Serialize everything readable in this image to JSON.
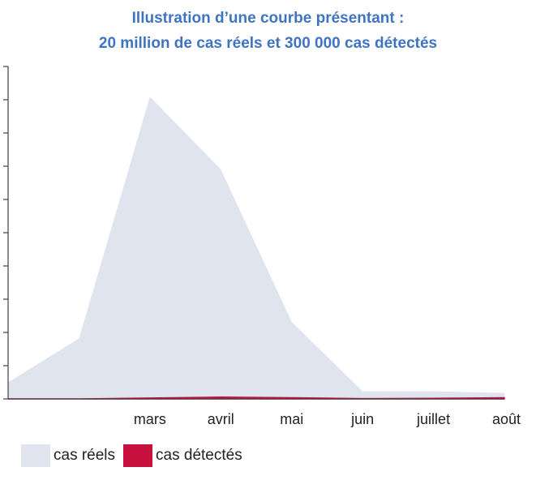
{
  "title_line1": "Illustration d’une courbe présentant :",
  "title_line2": "20 million de cas réels et 300 000 cas détectés",
  "chart_data": {
    "type": "area",
    "x": [
      "",
      "",
      "mars",
      "avril",
      "mai",
      "juin",
      "juillet",
      "août"
    ],
    "tick_labels": [
      "mars",
      "avril",
      "mai",
      "juin",
      "juillet",
      "août"
    ],
    "series": [
      {
        "name": "cas réels",
        "color": "#dfe4ee",
        "values": [
          0.55,
          2.0,
          10.0,
          7.6,
          2.55,
          0.25,
          0.25,
          0.2
        ]
      },
      {
        "name": "cas détectés",
        "color": "#c8103e",
        "values": [
          0,
          0,
          0.03,
          0.06,
          0.04,
          0.01,
          0.02,
          0.04
        ]
      }
    ],
    "ylim": [
      0,
      11
    ],
    "ytick_count": 11,
    "ytick_labels_shown": false,
    "grid": false,
    "legend_position": "bottom-left",
    "xlabel": "",
    "ylabel": ""
  }
}
